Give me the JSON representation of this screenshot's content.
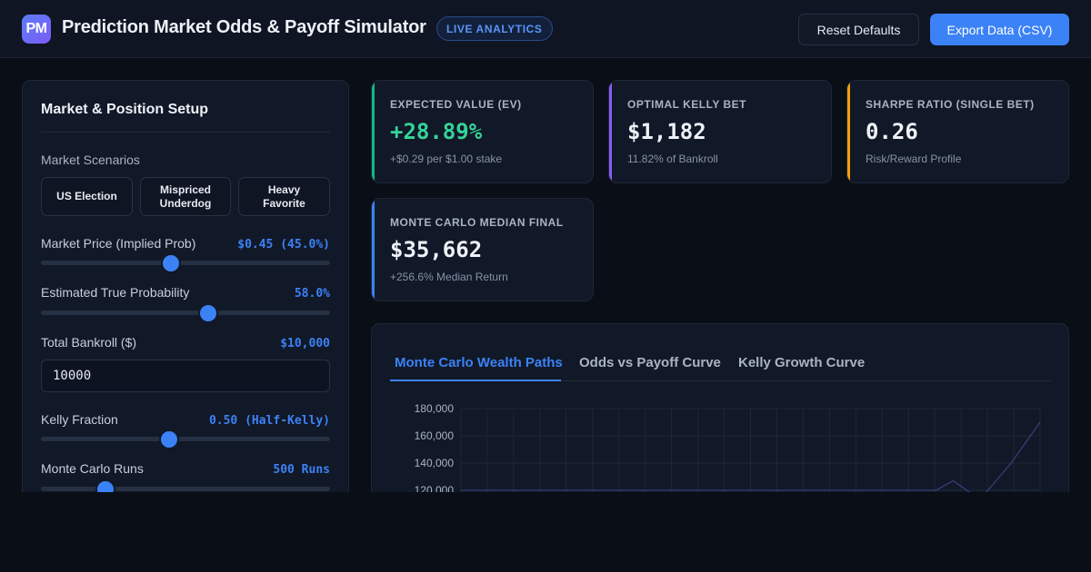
{
  "header": {
    "logo_text": "PM",
    "title": "Prediction Market Odds & Payoff Simulator",
    "badge": "LIVE ANALYTICS",
    "reset_label": "Reset Defaults",
    "export_label": "Export Data (CSV)"
  },
  "setup": {
    "title": "Market & Position Setup",
    "scenarios_label": "Market Scenarios",
    "scenarios": [
      "US Election",
      "Mispriced Underdog",
      "Heavy Favorite"
    ],
    "market_price": {
      "label": "Market Price (Implied Prob)",
      "value_text": "$0.45 (45.0%)",
      "fraction": 0.45
    },
    "true_prob": {
      "label": "Estimated True Probability",
      "value_text": "58.0%",
      "fraction": 0.58
    },
    "bankroll": {
      "label": "Total Bankroll ($)",
      "value_text": "$10,000",
      "input_value": "10000"
    },
    "kelly_fraction": {
      "label": "Kelly Fraction",
      "value_text": "0.50 (Half-Kelly)",
      "fraction": 0.444
    },
    "mc_runs": {
      "label": "Monte Carlo Runs",
      "value_text": "500 Runs",
      "fraction": 0.222
    }
  },
  "stats": [
    {
      "label": "EXPECTED VALUE (EV)",
      "value": "+28.89%",
      "sub": "+$0.29 per $1.00 stake",
      "accent": "#10b981",
      "value_color": "#34d399"
    },
    {
      "label": "OPTIMAL KELLY BET",
      "value": "$1,182",
      "sub": "11.82% of Bankroll",
      "accent": "#8b5cf6",
      "value_color": "#eef1f7"
    },
    {
      "label": "SHARPE RATIO (SINGLE BET)",
      "value": "0.26",
      "sub": "Risk/Reward Profile",
      "accent": "#f59e0b",
      "value_color": "#eef1f7"
    },
    {
      "label": "MONTE CARLO MEDIAN FINAL",
      "value": "$35,662",
      "sub": "+256.6% Median Return",
      "accent": "#3b82f6",
      "value_color": "#eef1f7"
    }
  ],
  "tabs": [
    "Monte Carlo Wealth Paths",
    "Odds vs Payoff Curve",
    "Kelly Growth Curve"
  ],
  "chart_data": {
    "type": "line",
    "title": "",
    "xlabel": "",
    "ylabel": "",
    "y_ticks": [
      180000,
      160000,
      140000,
      120000
    ],
    "y_tick_labels": [
      "180,000",
      "160,000",
      "140,000",
      "120,000"
    ],
    "series": [
      {
        "x": [
          0.0,
          0.82,
          0.85,
          0.88
        ],
        "y": [
          120000,
          120000,
          127000,
          118000
        ]
      },
      {
        "x": [
          0.9,
          0.95,
          1.0
        ],
        "y": [
          115000,
          140000,
          170000
        ]
      }
    ]
  },
  "colors": {
    "accent": "#3b82f6",
    "positive": "#34d399"
  }
}
